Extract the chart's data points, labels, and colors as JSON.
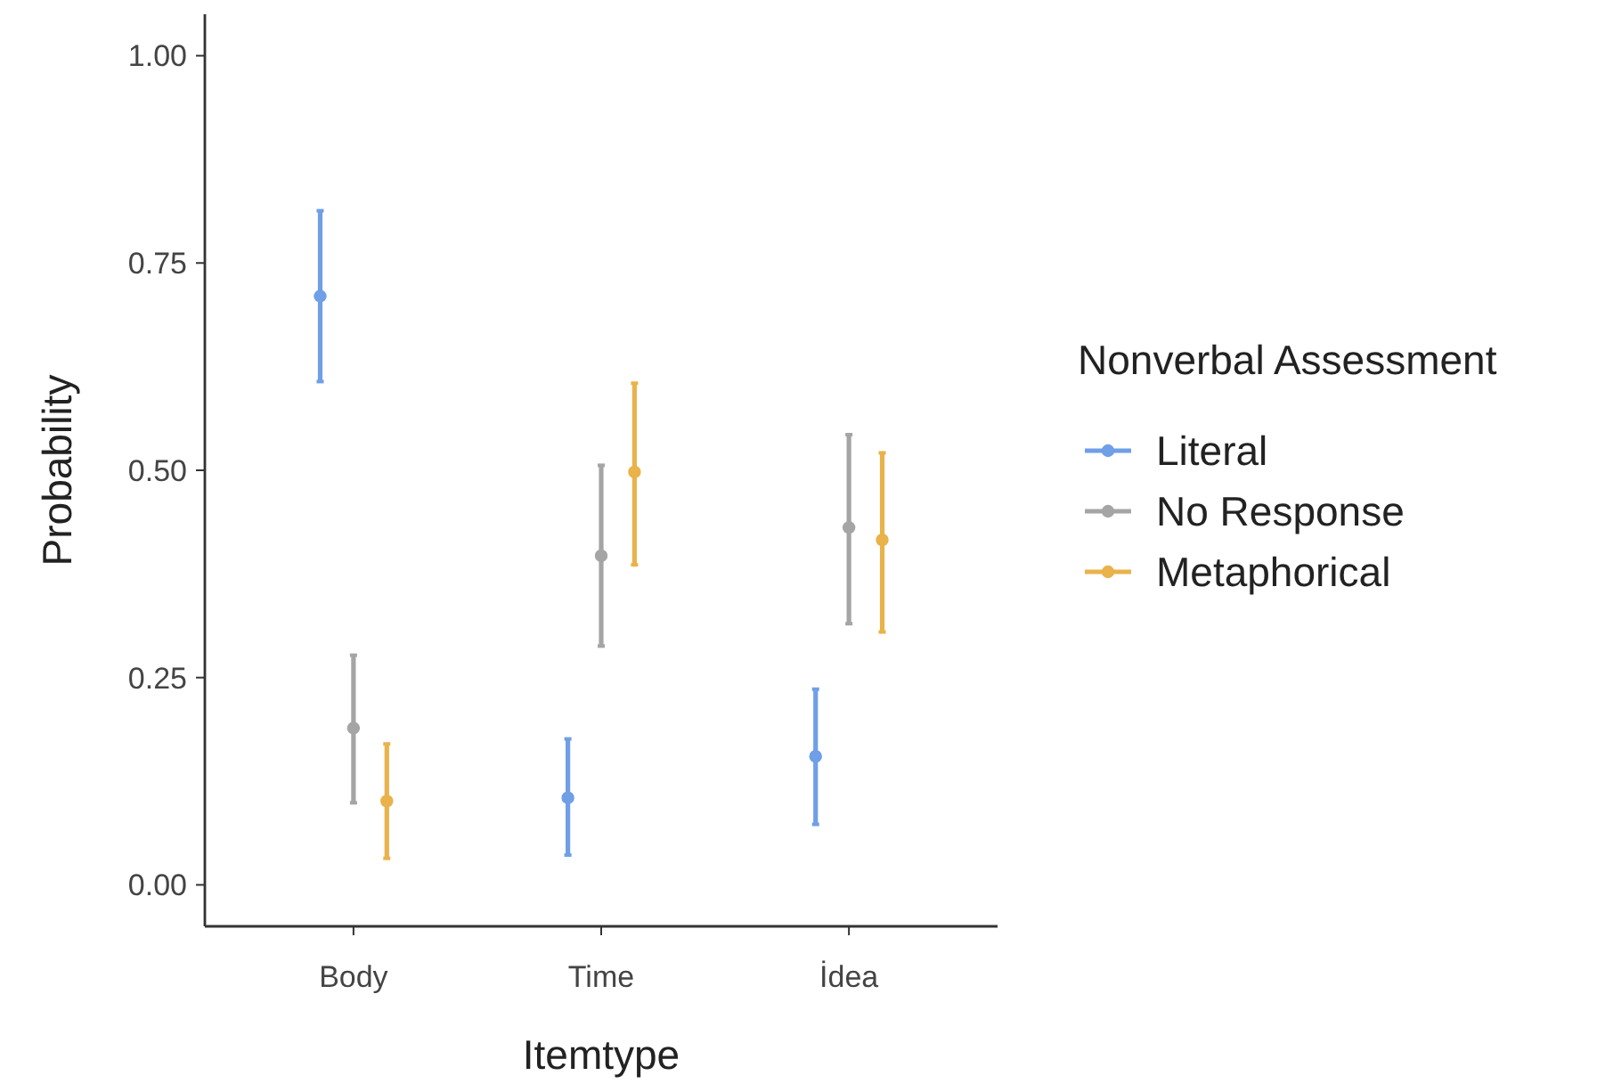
{
  "chart_data": {
    "type": "scatter",
    "xlabel": "Itemtype",
    "ylabel": "Probability",
    "legend_title": "Nonverbal Assessment",
    "categories": [
      "Body",
      "Time",
      "İdea"
    ],
    "ylim": [
      -0.05,
      1.05
    ],
    "yticks": [
      {
        "value": 0,
        "label": "0.00"
      },
      {
        "value": 0.25,
        "label": "0.25"
      },
      {
        "value": 0.5,
        "label": "0.50"
      },
      {
        "value": 0.75,
        "label": "0.75"
      },
      {
        "value": 1,
        "label": "1.00"
      }
    ],
    "grid": false,
    "legend": "right",
    "marker": "circle",
    "series": [
      {
        "name": "Literal",
        "color": "#6f9fe6",
        "values": [
          0.71,
          0.105,
          0.155
        ],
        "errors": [
          [
            0.607,
            0.813
          ],
          [
            0.036,
            0.176
          ],
          [
            0.073,
            0.236
          ]
        ]
      },
      {
        "name": "No Response",
        "color": "#a5a5a5",
        "values": [
          0.189,
          0.397,
          0.431
        ],
        "errors": [
          [
            0.099,
            0.277
          ],
          [
            0.288,
            0.506
          ],
          [
            0.315,
            0.543
          ]
        ]
      },
      {
        "name": "Metaphorical",
        "color": "#e9b24a",
        "values": [
          0.101,
          0.498,
          0.416
        ],
        "errors": [
          [
            0.032,
            0.17
          ],
          [
            0.386,
            0.605
          ],
          [
            0.305,
            0.521
          ]
        ]
      }
    ]
  }
}
